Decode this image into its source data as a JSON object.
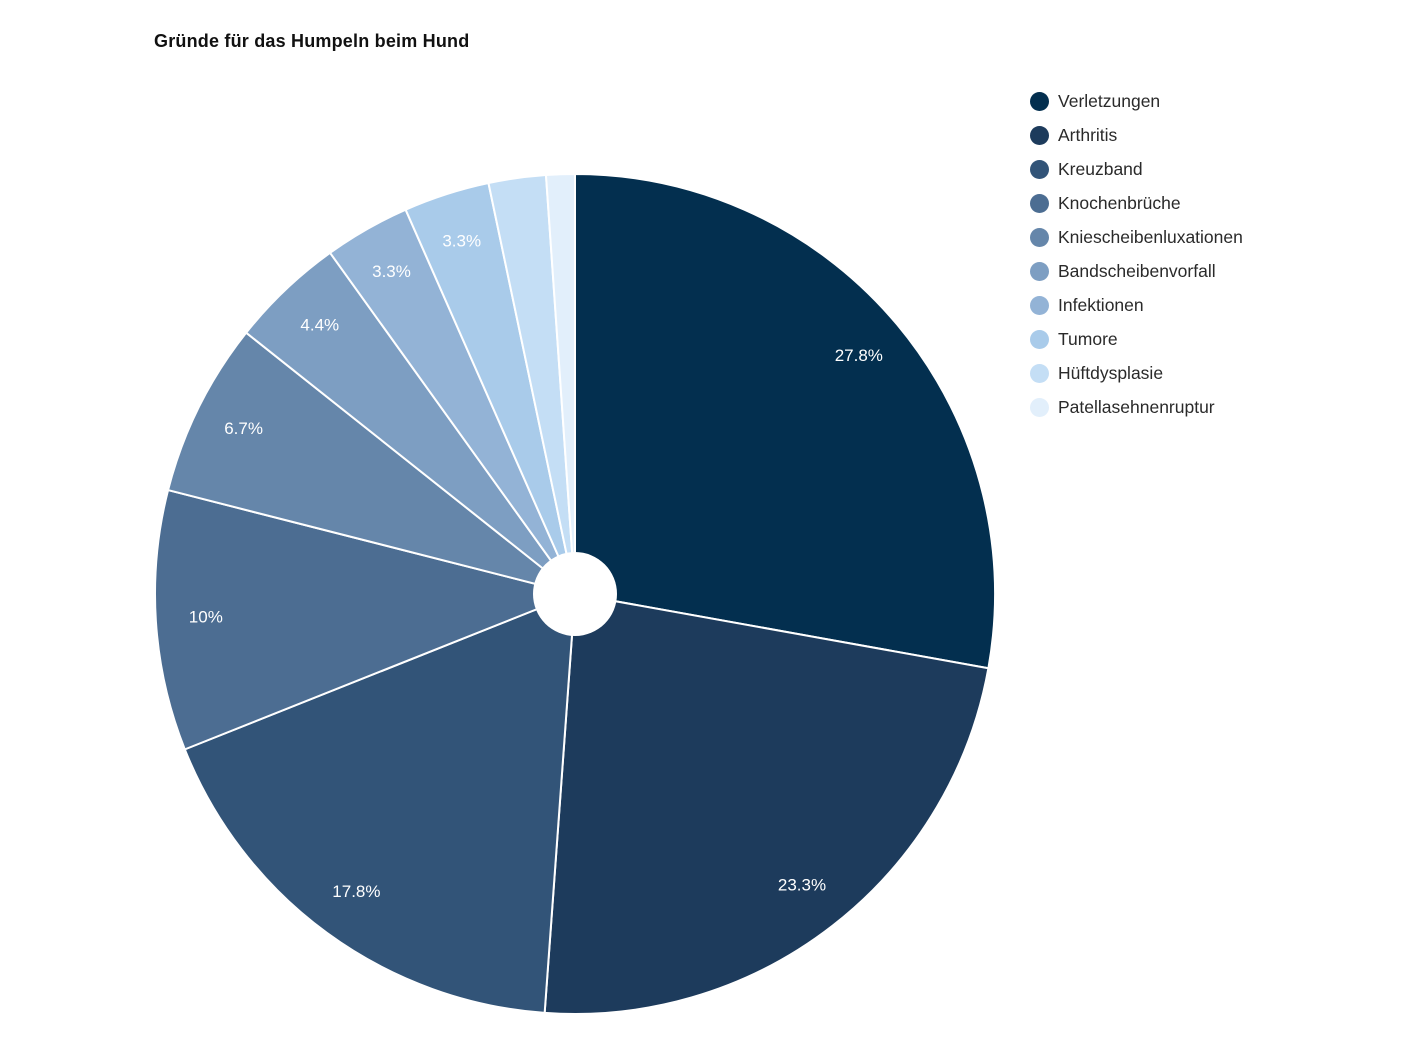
{
  "chart_data": {
    "type": "pie",
    "title": "Gründe für das Humpeln beim Hund",
    "labels": [
      "Verletzungen",
      "Arthritis",
      "Kreuzband",
      "Knochenbrüche",
      "Kniescheibenluxationen",
      "Bandscheibenvorfall",
      "Infektionen",
      "Tumore",
      "Hüftdysplasie",
      "Patellasehnenruptur"
    ],
    "values": [
      27.8,
      23.3,
      17.8,
      10,
      6.7,
      4.4,
      3.3,
      3.3,
      2.2,
      1.1
    ],
    "percent_labels": [
      "27.8%",
      "23.3%",
      "17.8%",
      "10%",
      "6.7%",
      "4.4%",
      "3.3%",
      "3.3%",
      "",
      ""
    ],
    "colors": [
      "#032f4f",
      "#1d3b5c",
      "#325478",
      "#4c6d92",
      "#6586aa",
      "#7d9ec2",
      "#93b3d6",
      "#a9cbea",
      "#c4def5",
      "#e2effb"
    ],
    "slice_label_color": "#ffffff",
    "title_color": "#111111",
    "legend_text_color": "#2a2a2a",
    "legend_position": "right",
    "start_angle_deg": 0,
    "direction": "clockwise",
    "donut_hole_ratio": 0.1,
    "grid": "off"
  }
}
